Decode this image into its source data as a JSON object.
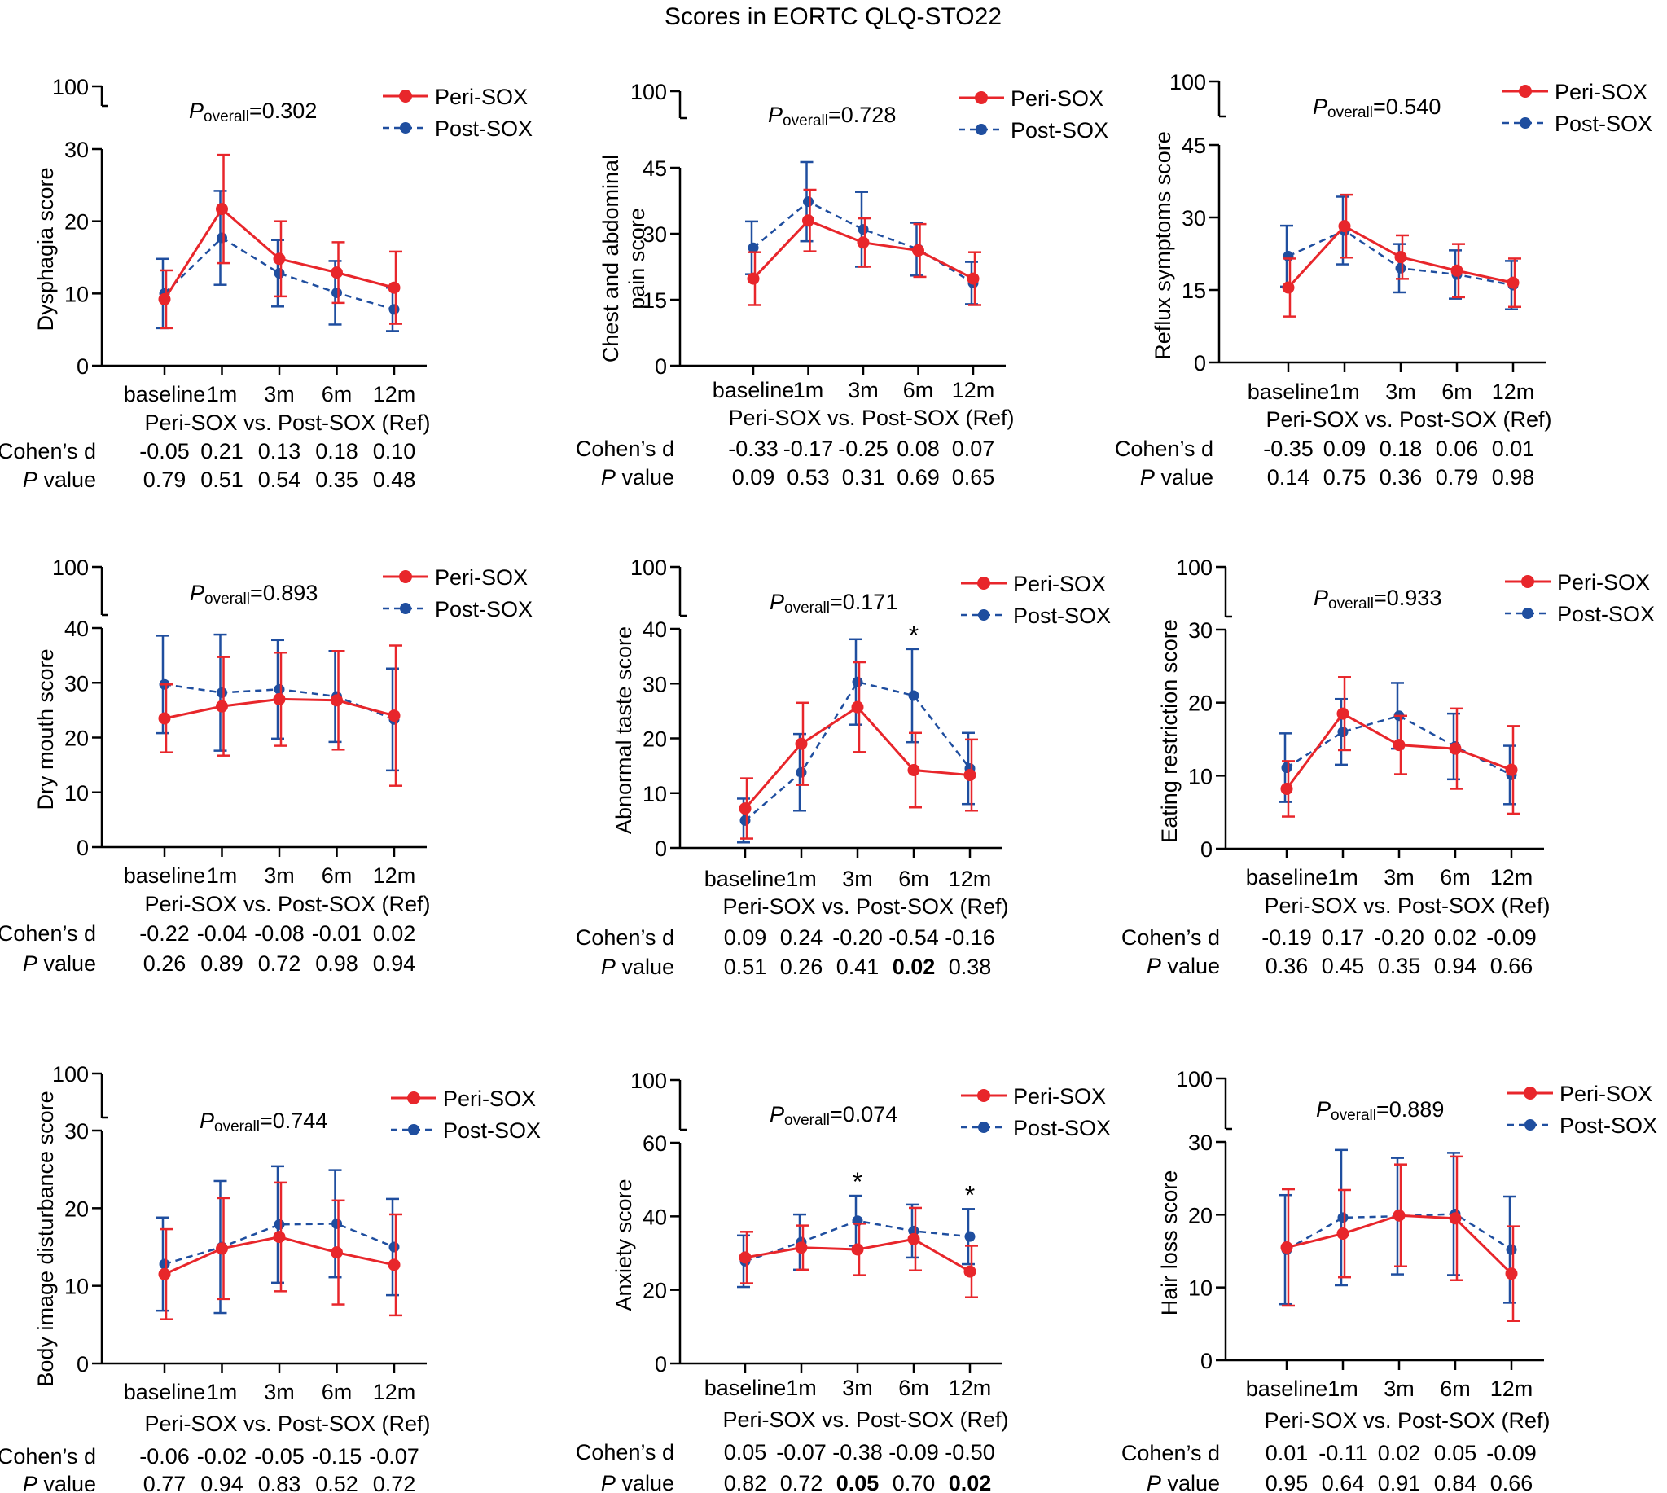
{
  "page_title": "Scores in EORTC QLQ-STO22",
  "labels": {
    "group_a": "Peri-SOX",
    "group_b": "Post-SOX",
    "comparison": "Peri-SOX vs. Post-SOX (Ref)",
    "cohens_d": "Cohen’s d",
    "p_italic": "P",
    "p_value_suffix": " value",
    "p_overall_main": "P",
    "p_overall_sub": "overall",
    "significance_mark": "*"
  },
  "colors": {
    "group_a": "#e8262b",
    "group_b": "#1f4e9f",
    "axis": "#000000"
  },
  "chart_data": [
    {
      "type": "line",
      "ylabel": [
        "Dysphagia score"
      ],
      "p_overall": "=0.302",
      "top_tick": "100",
      "ylim": [
        0,
        30
      ],
      "yticks": [
        "0",
        "10",
        "20",
        "30"
      ],
      "categories": [
        "baseline",
        "1m",
        "3m",
        "6m",
        "12m"
      ],
      "series": [
        {
          "name": "Peri-SOX",
          "values": [
            9.2,
            21.7,
            14.8,
            12.9,
            10.8
          ],
          "err_low": [
            4.0,
            7.5,
            5.2,
            4.2,
            5.0
          ],
          "err_high": [
            4.0,
            7.5,
            5.2,
            4.2,
            5.0
          ]
        },
        {
          "name": "Post-SOX",
          "values": [
            10.0,
            17.7,
            12.8,
            10.1,
            7.8
          ],
          "err_low": [
            4.8,
            6.5,
            4.6,
            4.4,
            3.0
          ],
          "err_high": [
            4.8,
            6.5,
            4.6,
            4.4,
            3.0
          ]
        }
      ],
      "cohens_d": [
        "-0.05",
        "0.21",
        "0.13",
        "0.18",
        "0.10"
      ],
      "p_values": [
        "0.79",
        "0.51",
        "0.54",
        "0.35",
        "0.48"
      ],
      "p_bold": [
        false,
        false,
        false,
        false,
        false
      ],
      "significance": [
        "",
        "",
        "",
        "",
        ""
      ]
    },
    {
      "type": "line",
      "ylabel": [
        "Chest and abdominal",
        "pain score"
      ],
      "p_overall": "=0.728",
      "top_tick": "100",
      "ylim": [
        0,
        45
      ],
      "yticks": [
        "0",
        "15",
        "30",
        "45"
      ],
      "categories": [
        "baseline",
        "1m",
        "3m",
        "6m",
        "12m"
      ],
      "series": [
        {
          "name": "Peri-SOX",
          "values": [
            19.8,
            33.0,
            28.0,
            26.2,
            19.8
          ],
          "err_low": [
            6.0,
            7.0,
            5.5,
            6.0,
            6.0
          ],
          "err_high": [
            6.0,
            7.0,
            5.5,
            6.0,
            6.0
          ]
        },
        {
          "name": "Post-SOX",
          "values": [
            26.8,
            37.3,
            31.0,
            26.5,
            18.8
          ],
          "err_low": [
            6.0,
            9.0,
            8.5,
            6.0,
            4.8
          ],
          "err_high": [
            6.0,
            9.0,
            8.5,
            6.0,
            4.8
          ]
        }
      ],
      "cohens_d": [
        "-0.33",
        "-0.17",
        "-0.25",
        "0.08",
        "0.07"
      ],
      "p_values": [
        "0.09",
        "0.53",
        "0.31",
        "0.69",
        "0.65"
      ],
      "p_bold": [
        false,
        false,
        false,
        false,
        false
      ],
      "significance": [
        "",
        "",
        "",
        "",
        ""
      ]
    },
    {
      "type": "line",
      "ylabel": [
        "Reflux symptoms score"
      ],
      "p_overall": "=0.540",
      "top_tick": "100",
      "ylim": [
        0,
        45
      ],
      "yticks": [
        "0",
        "15",
        "30",
        "45"
      ],
      "categories": [
        "baseline",
        "1m",
        "3m",
        "6m",
        "12m"
      ],
      "series": [
        {
          "name": "Peri-SOX",
          "values": [
            15.5,
            28.2,
            21.8,
            19.0,
            16.5
          ],
          "err_low": [
            6.0,
            6.5,
            4.5,
            5.5,
            5.0
          ],
          "err_high": [
            6.0,
            6.5,
            4.5,
            5.5,
            5.0
          ]
        },
        {
          "name": "Post-SOX",
          "values": [
            22.0,
            27.3,
            19.5,
            18.2,
            16.0
          ],
          "err_low": [
            6.3,
            7.0,
            5.0,
            5.0,
            5.0
          ],
          "err_high": [
            6.3,
            7.0,
            5.0,
            5.0,
            5.0
          ]
        }
      ],
      "cohens_d": [
        "-0.35",
        "0.09",
        "0.18",
        "0.06",
        "0.01"
      ],
      "p_values": [
        "0.14",
        "0.75",
        "0.36",
        "0.79",
        "0.98"
      ],
      "p_bold": [
        false,
        false,
        false,
        false,
        false
      ],
      "significance": [
        "",
        "",
        "",
        "",
        ""
      ]
    },
    {
      "type": "line",
      "ylabel": [
        "Dry mouth score"
      ],
      "p_overall": "=0.893",
      "top_tick": "100",
      "ylim": [
        0,
        40
      ],
      "yticks": [
        "0",
        "10",
        "20",
        "30",
        "40"
      ],
      "categories": [
        "baseline",
        "1m",
        "3m",
        "6m",
        "12m"
      ],
      "series": [
        {
          "name": "Peri-SOX",
          "values": [
            23.5,
            25.7,
            27.0,
            26.8,
            24.0
          ],
          "err_low": [
            6.2,
            9.0,
            8.5,
            9.0,
            12.8
          ],
          "err_high": [
            6.2,
            9.0,
            8.5,
            9.0,
            12.8
          ]
        },
        {
          "name": "Post-SOX",
          "values": [
            29.7,
            28.2,
            28.8,
            27.5,
            23.3
          ],
          "err_low": [
            8.9,
            10.6,
            9.0,
            8.3,
            9.3
          ],
          "err_high": [
            8.9,
            10.6,
            9.0,
            8.3,
            9.3
          ]
        }
      ],
      "cohens_d": [
        "-0.22",
        "-0.04",
        "-0.08",
        "-0.01",
        "0.02"
      ],
      "p_values": [
        "0.26",
        "0.89",
        "0.72",
        "0.98",
        "0.94"
      ],
      "p_bold": [
        false,
        false,
        false,
        false,
        false
      ],
      "significance": [
        "",
        "",
        "",
        "",
        ""
      ]
    },
    {
      "type": "line",
      "ylabel": [
        "Abnormal taste score"
      ],
      "p_overall": "=0.171",
      "top_tick": "100",
      "ylim": [
        0,
        40
      ],
      "yticks": [
        "0",
        "10",
        "20",
        "30",
        "40"
      ],
      "categories": [
        "baseline",
        "1m",
        "3m",
        "6m",
        "12m"
      ],
      "series": [
        {
          "name": "Peri-SOX",
          "values": [
            7.2,
            19.0,
            25.7,
            14.2,
            13.3
          ],
          "err_low": [
            5.5,
            7.5,
            8.2,
            6.8,
            6.5
          ],
          "err_high": [
            5.5,
            7.5,
            8.2,
            6.8,
            6.5
          ]
        },
        {
          "name": "Post-SOX",
          "values": [
            5.0,
            13.8,
            30.3,
            27.8,
            14.5
          ],
          "err_low": [
            4.0,
            7.0,
            7.8,
            8.5,
            6.5
          ],
          "err_high": [
            4.0,
            7.0,
            7.8,
            8.5,
            6.5
          ]
        }
      ],
      "cohens_d": [
        "0.09",
        "0.24",
        "-0.20",
        "-0.54",
        "-0.16"
      ],
      "p_values": [
        "0.51",
        "0.26",
        "0.41",
        "0.02",
        "0.38"
      ],
      "p_bold": [
        false,
        false,
        false,
        true,
        false
      ],
      "significance": [
        "",
        "",
        "",
        "*",
        ""
      ]
    },
    {
      "type": "line",
      "ylabel": [
        "Eating restriction score"
      ],
      "p_overall": "=0.933",
      "top_tick": "100",
      "ylim": [
        0,
        30
      ],
      "yticks": [
        "0",
        "10",
        "20",
        "30"
      ],
      "categories": [
        "baseline",
        "1m",
        "3m",
        "6m",
        "12m"
      ],
      "series": [
        {
          "name": "Peri-SOX",
          "values": [
            8.2,
            18.5,
            14.2,
            13.7,
            10.8
          ],
          "err_low": [
            3.8,
            5.0,
            4.0,
            5.5,
            6.0
          ],
          "err_high": [
            3.8,
            5.0,
            4.0,
            5.5,
            6.0
          ]
        },
        {
          "name": "Post-SOX",
          "values": [
            11.1,
            16.0,
            18.2,
            14.0,
            10.1
          ],
          "err_low": [
            4.7,
            4.5,
            4.5,
            4.5,
            4.0
          ],
          "err_high": [
            4.7,
            4.5,
            4.5,
            4.5,
            4.0
          ]
        }
      ],
      "cohens_d": [
        "-0.19",
        "0.17",
        "-0.20",
        "0.02",
        "-0.09"
      ],
      "p_values": [
        "0.36",
        "0.45",
        "0.35",
        "0.94",
        "0.66"
      ],
      "p_bold": [
        false,
        false,
        false,
        false,
        false
      ],
      "significance": [
        "",
        "",
        "",
        "",
        ""
      ]
    },
    {
      "type": "line",
      "ylabel": [
        "Body image disturbance score"
      ],
      "p_overall": "=0.744",
      "top_tick": "100",
      "ylim": [
        0,
        30
      ],
      "yticks": [
        "0",
        "10",
        "20",
        "30"
      ],
      "categories": [
        "baseline",
        "1m",
        "3m",
        "6m",
        "12m"
      ],
      "series": [
        {
          "name": "Peri-SOX",
          "values": [
            11.5,
            14.8,
            16.3,
            14.3,
            12.7
          ],
          "err_low": [
            5.8,
            6.5,
            7.0,
            6.7,
            6.5
          ],
          "err_high": [
            5.8,
            6.5,
            7.0,
            6.7,
            6.5
          ]
        },
        {
          "name": "Post-SOX",
          "values": [
            12.8,
            15.0,
            17.9,
            18.0,
            15.0
          ],
          "err_low": [
            6.0,
            8.5,
            7.5,
            6.9,
            6.2
          ],
          "err_high": [
            6.0,
            8.5,
            7.5,
            6.9,
            6.2
          ]
        }
      ],
      "cohens_d": [
        "-0.06",
        "-0.02",
        "-0.05",
        "-0.15",
        "-0.07"
      ],
      "p_values": [
        "0.77",
        "0.94",
        "0.83",
        "0.52",
        "0.72"
      ],
      "p_bold": [
        false,
        false,
        false,
        false,
        false
      ],
      "significance": [
        "",
        "",
        "",
        "",
        ""
      ]
    },
    {
      "type": "line",
      "ylabel": [
        "Anxiety score"
      ],
      "p_overall": "=0.074",
      "top_tick": "100",
      "ylim": [
        0,
        60
      ],
      "yticks": [
        "0",
        "20",
        "40",
        "60"
      ],
      "categories": [
        "baseline",
        "1m",
        "3m",
        "6m",
        "12m"
      ],
      "series": [
        {
          "name": "Peri-SOX",
          "values": [
            28.8,
            31.5,
            31.0,
            33.8,
            25.0
          ],
          "err_low": [
            7.0,
            6.0,
            7.0,
            8.5,
            7.0
          ],
          "err_high": [
            7.0,
            6.0,
            7.0,
            8.5,
            7.0
          ]
        },
        {
          "name": "Post-SOX",
          "values": [
            27.8,
            33.0,
            38.8,
            36.0,
            34.5
          ],
          "err_low": [
            7.0,
            7.5,
            6.8,
            7.2,
            7.5
          ],
          "err_high": [
            7.0,
            7.5,
            6.8,
            7.2,
            7.5
          ]
        }
      ],
      "cohens_d": [
        "0.05",
        "-0.07",
        "-0.38",
        "-0.09",
        "-0.50"
      ],
      "p_values": [
        "0.82",
        "0.72",
        "0.05",
        "0.70",
        "0.02"
      ],
      "p_bold": [
        false,
        false,
        true,
        false,
        true
      ],
      "significance": [
        "",
        "",
        "*",
        "",
        "*"
      ]
    },
    {
      "type": "line",
      "ylabel": [
        "Hair loss score"
      ],
      "p_overall": "=0.889",
      "top_tick": "100",
      "ylim": [
        0,
        30
      ],
      "yticks": [
        "0",
        "10",
        "20",
        "30"
      ],
      "categories": [
        "baseline",
        "1m",
        "3m",
        "6m",
        "12m"
      ],
      "series": [
        {
          "name": "Peri-SOX",
          "values": [
            15.5,
            17.4,
            19.9,
            19.5,
            11.9
          ],
          "err_low": [
            8.0,
            6.0,
            7.0,
            8.5,
            6.5
          ],
          "err_high": [
            8.0,
            6.0,
            7.0,
            8.5,
            6.5
          ]
        },
        {
          "name": "Post-SOX",
          "values": [
            15.2,
            19.6,
            19.8,
            20.1,
            15.2
          ],
          "err_low": [
            7.5,
            9.3,
            8.0,
            8.4,
            7.3
          ],
          "err_high": [
            7.5,
            9.3,
            8.0,
            8.4,
            7.3
          ]
        }
      ],
      "cohens_d": [
        "0.01",
        "-0.11",
        "0.02",
        "0.05",
        "-0.09"
      ],
      "p_values": [
        "0.95",
        "0.64",
        "0.91",
        "0.84",
        "0.66"
      ],
      "p_bold": [
        false,
        false,
        false,
        false,
        false
      ],
      "significance": [
        "",
        "",
        "",
        "",
        ""
      ]
    }
  ]
}
